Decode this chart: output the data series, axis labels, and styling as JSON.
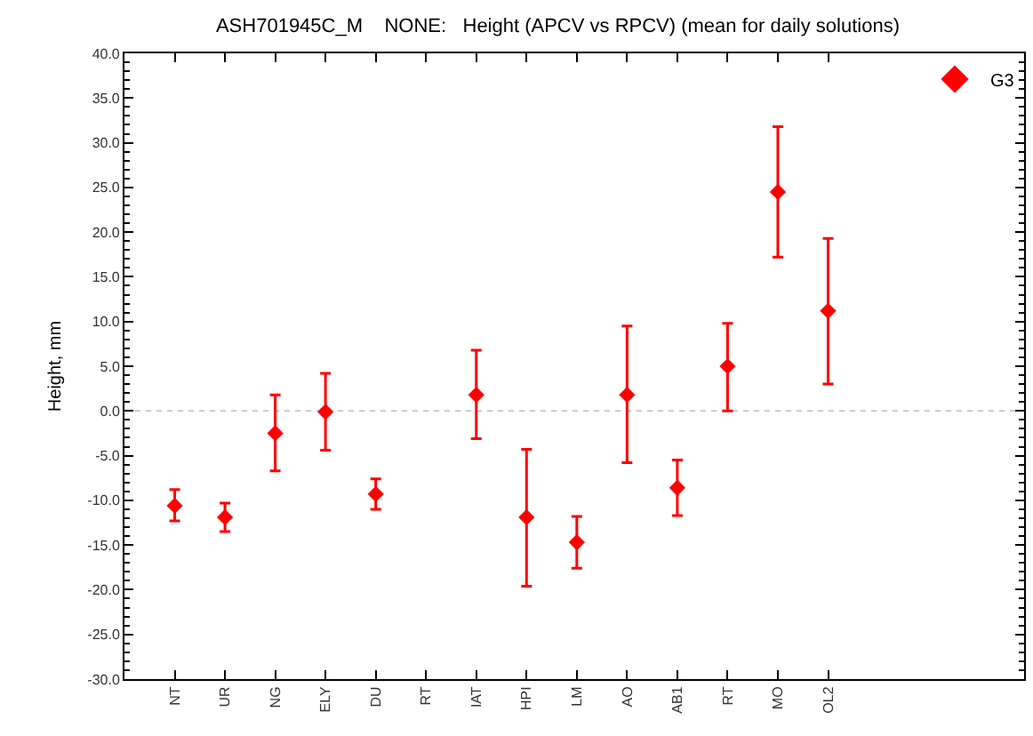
{
  "chart_data": {
    "type": "scatter",
    "title": "ASH701945C_M    NONE:   Height (APCV vs RPCV) (mean for daily solutions)",
    "ylabel": "Height, mm",
    "categories": [
      "NT",
      "UR",
      "NG",
      "ELY",
      "DU",
      "RT",
      "IAT",
      "HPI",
      "LM",
      "AO",
      "AB1",
      "RT",
      "MO",
      "OL2"
    ],
    "series": [
      {
        "name": "G3",
        "color": "#ff0000",
        "values": [
          -10.6,
          -11.9,
          -2.5,
          -0.1,
          -9.3,
          null,
          1.8,
          -11.9,
          -14.7,
          1.8,
          -8.6,
          5.0,
          24.5,
          11.2
        ],
        "errors": [
          [
            -12.3,
            -8.8
          ],
          [
            -13.5,
            -10.3
          ],
          [
            -6.7,
            1.8
          ],
          [
            -4.4,
            4.2
          ],
          [
            -11.0,
            -7.6
          ],
          null,
          [
            -3.1,
            6.8
          ],
          [
            -19.6,
            -4.3
          ],
          [
            -17.6,
            -11.8
          ],
          [
            -5.8,
            9.5
          ],
          [
            -11.7,
            -5.5
          ],
          [
            0.0,
            9.8
          ],
          [
            17.2,
            31.8
          ],
          [
            3.0,
            19.3
          ]
        ]
      }
    ],
    "ylim": [
      -30,
      40
    ],
    "yticks": [
      {
        "value": -30,
        "label": "-30.0"
      },
      {
        "value": -25,
        "label": "-25.0"
      },
      {
        "value": -20,
        "label": "-20.0"
      },
      {
        "value": -15,
        "label": "-15.0"
      },
      {
        "value": -10,
        "label": "-10.0"
      },
      {
        "value": -5,
        "label": "-5.0"
      },
      {
        "value": 0,
        "label": "0.0"
      },
      {
        "value": 5,
        "label": "5.0"
      },
      {
        "value": 10,
        "label": "10.0"
      },
      {
        "value": 15,
        "label": "15.0"
      },
      {
        "value": 20,
        "label": "20.0"
      },
      {
        "value": 25,
        "label": "25.0"
      },
      {
        "value": 30,
        "label": "30.0"
      },
      {
        "value": 35,
        "label": "35.0"
      },
      {
        "value": 40,
        "label": "40.0"
      }
    ],
    "ref_lines": [
      {
        "axis": "y",
        "value": 0,
        "color": "#c8c8c8",
        "line_style": "dotted"
      }
    ],
    "marker": "diamond",
    "legend": "top right",
    "grid": false
  }
}
